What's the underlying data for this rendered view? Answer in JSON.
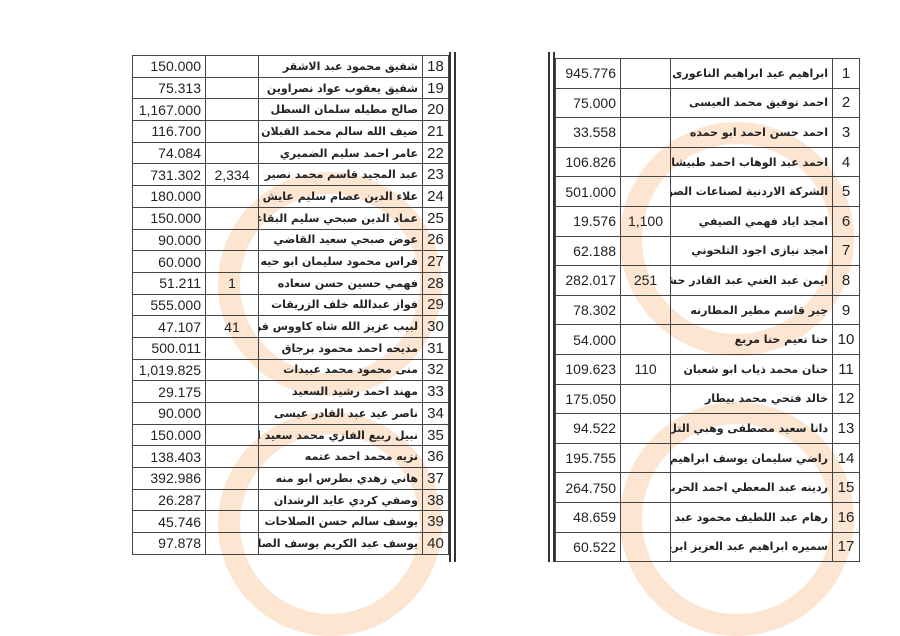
{
  "left_table": {
    "rows": [
      {
        "num": "18",
        "name": "شفيق محمود عبد الاشقر",
        "extra": "",
        "amount": "150.000"
      },
      {
        "num": "19",
        "name": "شفيق يعقوب عواد نصراوين",
        "extra": "",
        "amount": "75.313"
      },
      {
        "num": "20",
        "name": "صالح مطيله سلمان السطل",
        "extra": "",
        "amount": "1,167.000"
      },
      {
        "num": "21",
        "name": "ضيف الله سالم محمد القبلان",
        "extra": "",
        "amount": "116.700"
      },
      {
        "num": "22",
        "name": "عامر احمد سليم الضميري",
        "extra": "",
        "amount": "74.084"
      },
      {
        "num": "23",
        "name": "عبد المجيد قاسم محمد نصير",
        "extra": "2,334",
        "amount": "731.302"
      },
      {
        "num": "24",
        "name": "علاء الدين عصام سليم عايش",
        "extra": "",
        "amount": "180.000"
      },
      {
        "num": "25",
        "name": "عماد الدين صبحي سليم البقاعي",
        "extra": "",
        "amount": "150.000"
      },
      {
        "num": "26",
        "name": "عوض صبحي سعيد القاضي",
        "extra": "",
        "amount": "90.000"
      },
      {
        "num": "27",
        "name": "فراس محمود سليمان ابو حيه",
        "extra": "",
        "amount": "60.000"
      },
      {
        "num": "28",
        "name": "فهمي حسين حسن سعاده",
        "extra": "1",
        "amount": "51.211"
      },
      {
        "num": "29",
        "name": "فواز عبدالله خلف الزريقات",
        "extra": "",
        "amount": "555.000"
      },
      {
        "num": "30",
        "name": "لبيب عزيز الله شاه كاووس فرودي",
        "extra": "41",
        "amount": "47.107"
      },
      {
        "num": "31",
        "name": "مديحه احمد محمود برجاق",
        "extra": "",
        "amount": "500.011"
      },
      {
        "num": "32",
        "name": "منى محمود محمد عبيدات",
        "extra": "",
        "amount": "1,019.825"
      },
      {
        "num": "33",
        "name": "مهند احمد رشيد السعيد",
        "extra": "",
        "amount": "29.175"
      },
      {
        "num": "34",
        "name": "ناصر عيد عبد القادر عيسى",
        "extra": "",
        "amount": "90.000"
      },
      {
        "num": "35",
        "name": "نبيل ربيع الفازي محمد سعيد الحاج عبد",
        "extra": "",
        "amount": "150.000"
      },
      {
        "num": "36",
        "name": "نزيه محمد احمد عتمه",
        "extra": "",
        "amount": "138.403"
      },
      {
        "num": "37",
        "name": "هاني زهدي بطرس ابو منه",
        "extra": "",
        "amount": "392.986"
      },
      {
        "num": "38",
        "name": "وصفي كردي عايد الرشدان",
        "extra": "",
        "amount": "26.287"
      },
      {
        "num": "39",
        "name": "يوسف سالم حسن الصلاحات",
        "extra": "",
        "amount": "45.746"
      },
      {
        "num": "40",
        "name": "يوسف عبد الكريم يوسف الصالح",
        "extra": "",
        "amount": "97.878"
      }
    ]
  },
  "right_table": {
    "rows": [
      {
        "num": "1",
        "name": "ابراهيم عيد ابراهيم الناعورى",
        "extra": "",
        "amount": "945.776"
      },
      {
        "num": "2",
        "name": "احمد توفيق محمد العيسى",
        "extra": "",
        "amount": "75.000"
      },
      {
        "num": "3",
        "name": "احمد حسن احمد ابو حمده",
        "extra": "",
        "amount": "33.558"
      },
      {
        "num": "4",
        "name": "احمد عبد الوهاب احمد طبيشات",
        "extra": "",
        "amount": "106.826"
      },
      {
        "num": "5",
        "name": "الشركة الاردنية لصناعات الصوف الصخري",
        "extra": "",
        "amount": "501.000"
      },
      {
        "num": "6",
        "name": "امجد اياد فهمي الصيفي",
        "extra": "1,100",
        "amount": "19.576"
      },
      {
        "num": "7",
        "name": "امجد نيازى اجود التلحوني",
        "extra": "",
        "amount": "62.188"
      },
      {
        "num": "8",
        "name": "ايمن عبد الغني عبد القادر حشاش",
        "extra": "251",
        "amount": "282.017"
      },
      {
        "num": "9",
        "name": "جبر قاسم مطير المطارنه",
        "extra": "",
        "amount": "78.302"
      },
      {
        "num": "10",
        "name": "حنا نعيم حنا مربع",
        "extra": "",
        "amount": "54.000"
      },
      {
        "num": "11",
        "name": "حنان محمد ذياب ابو شعبان",
        "extra": "110",
        "amount": "109.623"
      },
      {
        "num": "12",
        "name": "خالد فتحي محمد بيطار",
        "extra": "",
        "amount": "175.050"
      },
      {
        "num": "13",
        "name": "دانا سعيد مصطفى وهبي التل",
        "extra": "",
        "amount": "94.522"
      },
      {
        "num": "14",
        "name": "راضي سليمان يوسف ابراهيم",
        "extra": "",
        "amount": "195.755"
      },
      {
        "num": "15",
        "name": "ردينه عبد المعطي احمد الحرباوي",
        "extra": "",
        "amount": "264.750"
      },
      {
        "num": "16",
        "name": "رهام عبد اللطيف محمود عبد الهادي",
        "extra": "",
        "amount": "48.659"
      },
      {
        "num": "17",
        "name": "سميره ابراهيم عبد العزيز ابريغيث",
        "extra": "",
        "amount": "60.522"
      }
    ]
  },
  "colors": {
    "border": "#444444",
    "watermark": "#f5a05a"
  }
}
